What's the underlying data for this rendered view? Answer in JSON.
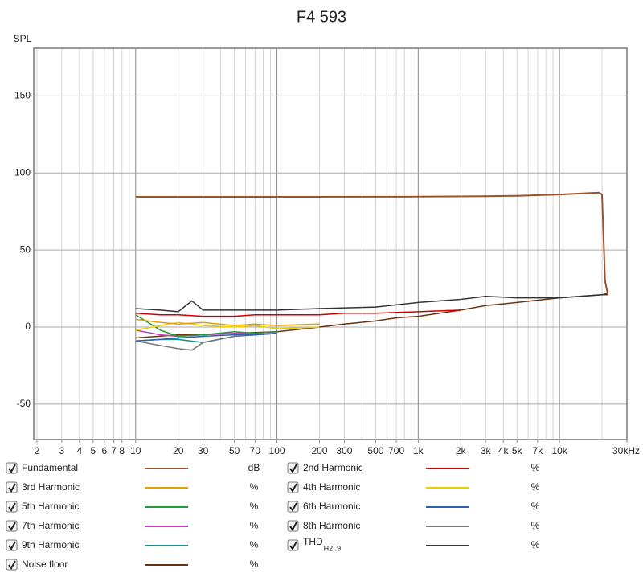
{
  "chart_data": {
    "type": "line",
    "title": "F4 593",
    "ylabel": "SPL",
    "xscale": "log",
    "grid": true,
    "xlim": [
      1.9,
      30000
    ],
    "ylim": [
      -73,
      181
    ],
    "yticks": [
      -50,
      0,
      50,
      100,
      150
    ],
    "xticks": [
      2,
      3,
      4,
      5,
      6,
      7,
      8,
      10,
      20,
      30,
      50,
      70,
      100,
      200,
      300,
      500,
      700,
      {
        "value": 1000,
        "label": "1k"
      },
      {
        "value": 2000,
        "label": "2k"
      },
      {
        "value": 3000,
        "label": "3k"
      },
      {
        "value": 4000,
        "label": "4k"
      },
      {
        "value": 5000,
        "label": "5k"
      },
      {
        "value": 7000,
        "label": "7k"
      },
      {
        "value": 10000,
        "label": "10k"
      },
      {
        "value": 30000,
        "label": "30kHz"
      }
    ],
    "series": [
      {
        "name": "Fundamental",
        "unit": "dB",
        "color": "#a0522d",
        "x": [
          10,
          100,
          1000,
          3000,
          5000,
          10000,
          15000,
          19000,
          20000,
          21000,
          22000
        ],
        "values": [
          84.5,
          84.5,
          84.6,
          84.9,
          85.2,
          86,
          86.8,
          87.3,
          86,
          30,
          21
        ]
      },
      {
        "name": "2nd Harmonic",
        "unit": "%",
        "color": "#cc0000",
        "x": [
          10,
          15,
          20,
          30,
          50,
          70,
          100,
          200,
          300,
          500,
          1000,
          2000
        ],
        "values": [
          9,
          8,
          8,
          7,
          7,
          8,
          8,
          8,
          9,
          9,
          10,
          11
        ]
      },
      {
        "name": "3rd Harmonic",
        "unit": "%",
        "color": "#e0a000",
        "x": [
          10,
          15,
          20,
          30,
          50,
          70,
          100,
          200
        ],
        "values": [
          5,
          3,
          2,
          3,
          1,
          2,
          1,
          2
        ]
      },
      {
        "name": "4th Harmonic",
        "unit": "%",
        "color": "#e8d000",
        "x": [
          10,
          15,
          20,
          30,
          50,
          70,
          100,
          200
        ],
        "values": [
          -2,
          1,
          3,
          1,
          0,
          1,
          -1,
          0
        ]
      },
      {
        "name": "5th Harmonic",
        "unit": "%",
        "color": "#22993a",
        "x": [
          10,
          15,
          20,
          30,
          50,
          70,
          100
        ],
        "values": [
          8,
          -2,
          -6,
          -5,
          -3,
          -4,
          -3
        ]
      },
      {
        "name": "6th Harmonic",
        "unit": "%",
        "color": "#3060b0",
        "x": [
          10,
          15,
          20,
          30,
          50,
          70,
          100
        ],
        "values": [
          -9,
          -8,
          -7,
          -6,
          -5,
          -5,
          -4
        ]
      },
      {
        "name": "7th Harmonic",
        "unit": "%",
        "color": "#c040c0",
        "x": [
          10,
          15,
          20,
          30,
          50,
          70,
          100
        ],
        "values": [
          -2,
          -5,
          -6,
          -5,
          -4,
          -4,
          -3
        ]
      },
      {
        "name": "8th Harmonic",
        "unit": "%",
        "color": "#777777",
        "x": [
          10,
          15,
          20,
          25,
          30,
          50,
          70,
          100
        ],
        "values": [
          -9,
          -12,
          -14,
          -15,
          -10,
          -6,
          -5,
          -4
        ]
      },
      {
        "name": "9th Harmonic",
        "unit": "%",
        "color": "#109090",
        "x": [
          10,
          15,
          20,
          30,
          50,
          70,
          100
        ],
        "values": [
          -9,
          -8,
          -8,
          -10,
          -6,
          -5,
          -4
        ]
      },
      {
        "name": "THD",
        "name_sub": "H2..9",
        "unit": "%",
        "color": "#333333",
        "x": [
          10,
          15,
          20,
          25,
          30,
          50,
          100,
          200,
          500,
          1000,
          2000,
          3000,
          5000,
          10000,
          20000,
          22000
        ],
        "values": [
          12,
          11,
          10,
          17,
          11,
          11,
          11,
          12,
          13,
          16,
          18,
          20,
          19,
          19,
          21,
          22
        ]
      },
      {
        "name": "Noise floor",
        "unit": "%",
        "color": "#6b3410",
        "x": [
          10,
          20,
          30,
          50,
          100,
          200,
          300,
          500,
          700,
          1000,
          2000,
          3000,
          5000,
          10000,
          20000,
          22000
        ],
        "values": [
          -7,
          -5,
          -5,
          -4,
          -3,
          0,
          2,
          4,
          6,
          7,
          11,
          14,
          16,
          19,
          21,
          21
        ]
      }
    ]
  }
}
